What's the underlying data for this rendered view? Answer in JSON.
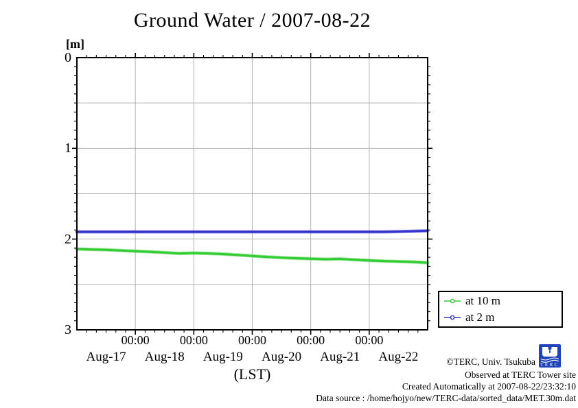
{
  "title": "Ground Water / 2007-08-22",
  "y_axis": {
    "unit_label": "[m]",
    "tick_labels": [
      "0",
      "1",
      "2",
      "3"
    ]
  },
  "x_axis": {
    "time_tick_label": "00:00",
    "day_labels": [
      "Aug-17",
      "Aug-18",
      "Aug-19",
      "Aug-20",
      "Aug-21",
      "Aug-22"
    ],
    "axis_label": "(LST)"
  },
  "legend": {
    "items": [
      {
        "label": "at 10 m",
        "color": "#33cc33"
      },
      {
        "label": "at 2 m",
        "color": "#3333cc"
      }
    ]
  },
  "annotations": {
    "copyright": "©TERC, Univ. Tsukuba",
    "observed": "Observed at TERC Tower site",
    "created": "Created Automatically at 2007-08-22/23:32:10",
    "datasource": "Data source : /home/hojyo/new/TERC-data/sorted_data/MET.30m.dat"
  },
  "logo": {
    "text": "TERC",
    "color": "#2244bb"
  },
  "chart_data": {
    "type": "line",
    "title": "Ground Water / 2007-08-22",
    "xlabel": "(LST)",
    "ylabel": "[m]",
    "x_unit": "hours since Aug-17 00:00 LST",
    "x_range": [
      0,
      144
    ],
    "ylim": [
      0,
      3
    ],
    "y_inverted_depth": true,
    "grid": true,
    "grid_color": "#b2b2b2",
    "major_x_tick_hours": [
      24,
      48,
      72,
      96,
      120
    ],
    "minor_x_tick_interval_hours": 4,
    "major_y_gridlines": [
      0.5,
      1.0,
      1.5,
      2.0,
      2.5
    ],
    "minor_y_tick_interval": 0.1,
    "legend_position": "outside-right-bottom",
    "x": [
      0,
      6,
      12,
      18,
      24,
      30,
      36,
      42,
      48,
      54,
      60,
      66,
      72,
      78,
      84,
      90,
      96,
      102,
      108,
      114,
      120,
      126,
      132,
      138,
      144
    ],
    "series": [
      {
        "name": "at 10 m",
        "color": "#33cc33",
        "values": [
          2.11,
          2.114,
          2.118,
          2.126,
          2.134,
          2.14,
          2.148,
          2.158,
          2.154,
          2.158,
          2.165,
          2.175,
          2.186,
          2.196,
          2.205,
          2.211,
          2.216,
          2.222,
          2.218,
          2.228,
          2.236,
          2.242,
          2.247,
          2.252,
          2.261
        ]
      },
      {
        "name": "at 2 m",
        "color": "#3333cc",
        "values": [
          1.92,
          1.92,
          1.92,
          1.92,
          1.92,
          1.92,
          1.92,
          1.92,
          1.92,
          1.92,
          1.92,
          1.92,
          1.92,
          1.92,
          1.92,
          1.92,
          1.92,
          1.92,
          1.92,
          1.92,
          1.92,
          1.92,
          1.918,
          1.913,
          1.908
        ]
      }
    ]
  }
}
